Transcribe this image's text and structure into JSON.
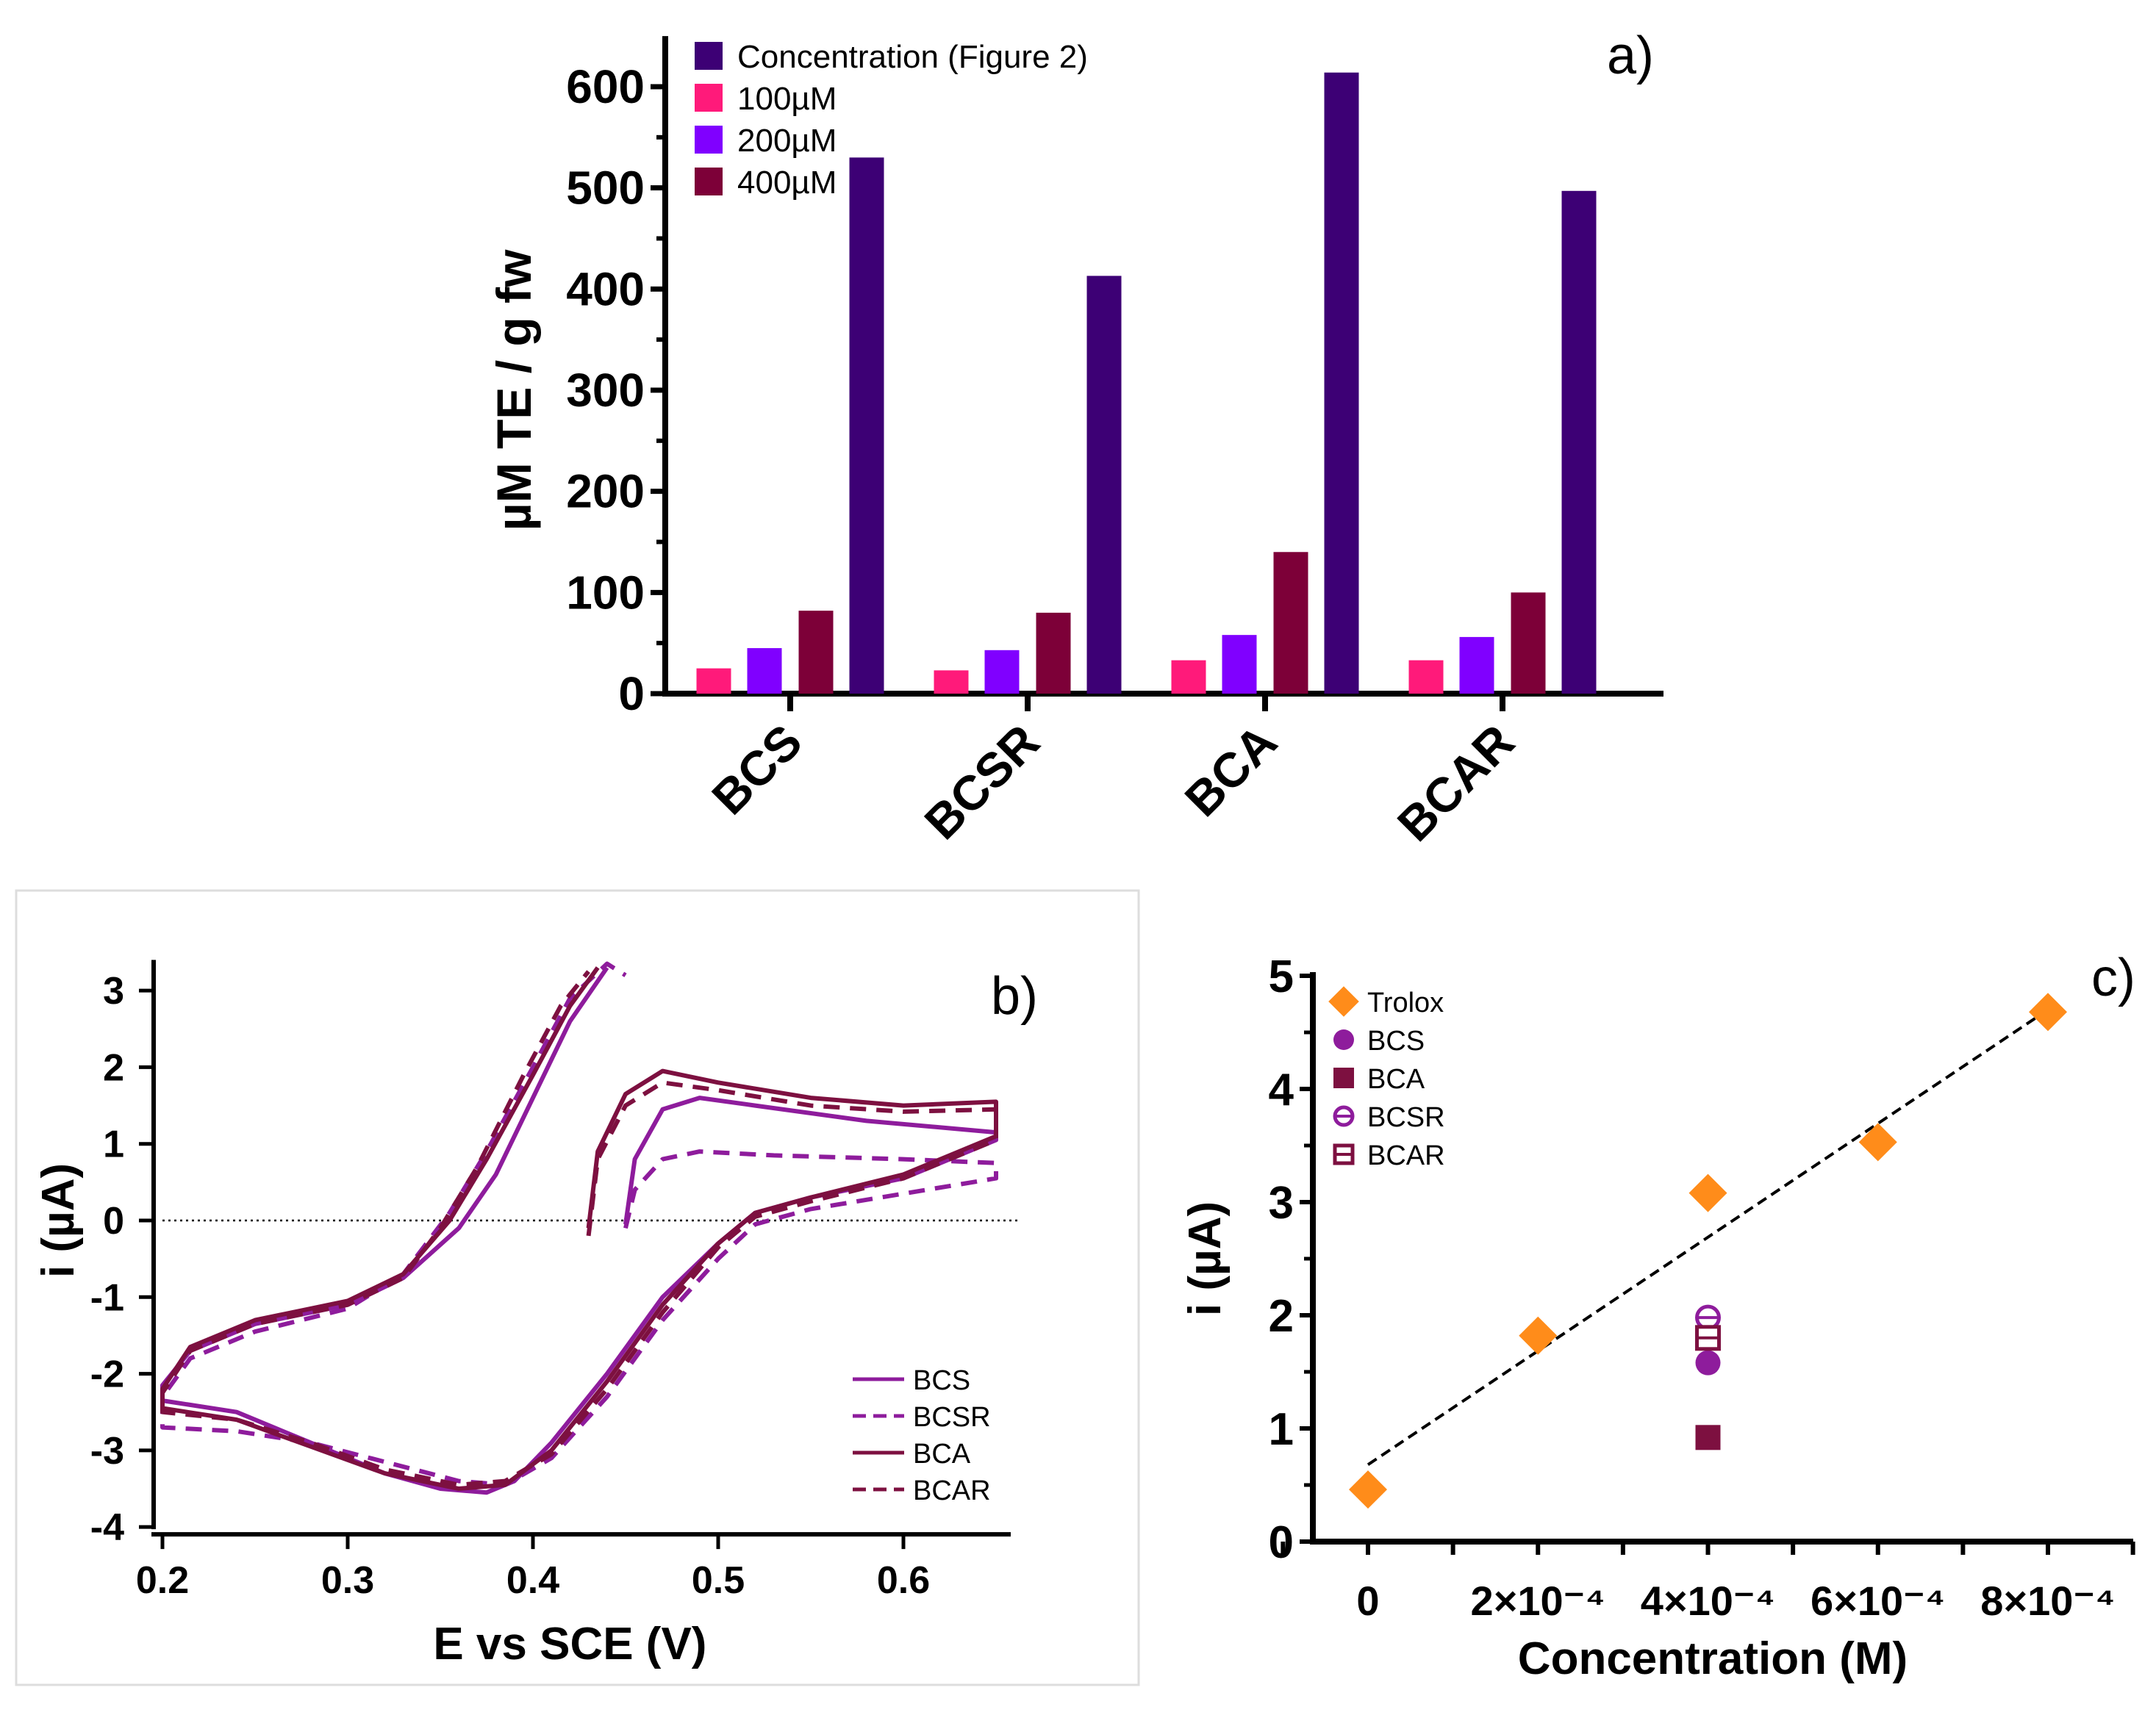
{
  "chart_data": [
    {
      "panel": "a)",
      "type": "bar",
      "ylabel": "µM TE / g fw",
      "xlabel": "",
      "ylim": [
        0,
        650
      ],
      "yticks": [
        0,
        100,
        200,
        300,
        400,
        500,
        600
      ],
      "categories": [
        "BCS",
        "BCSR",
        "BCA",
        "BCAR"
      ],
      "legend_position": "top-left",
      "series": [
        {
          "name": "100µM",
          "color": "#FF1A7A",
          "values": [
            25,
            23,
            33,
            33
          ]
        },
        {
          "name": "200µM",
          "color": "#8000FF",
          "values": [
            45,
            43,
            58,
            56
          ]
        },
        {
          "name": "400µM",
          "color": "#7D0038",
          "values": [
            82,
            80,
            140,
            100
          ]
        },
        {
          "name": "Concentration (Figure 2)",
          "color": "#3D0075",
          "values": [
            530,
            413,
            614,
            497
          ]
        }
      ],
      "legend_order": [
        "Concentration (Figure 2)",
        "100µM",
        "200µM",
        "400µM"
      ]
    },
    {
      "panel": "b)",
      "type": "line",
      "xlabel": "E vs SCE (V)",
      "ylabel": "i (µA)",
      "xlim": [
        0.2,
        0.65
      ],
      "ylim": [
        -4,
        3.4
      ],
      "xticks": [
        "0.2",
        "0.3",
        "0.4",
        "0.5",
        "0.6"
      ],
      "yticks": [
        "-4",
        "-3",
        "-2",
        "-1",
        "0",
        "1",
        "2",
        "3"
      ],
      "legend_position": "bottom-right",
      "series": [
        {
          "name": "BCS",
          "color": "#8E1C9C",
          "dash": false,
          "points": [
            [
              0.45,
              -0.05
            ],
            [
              0.455,
              0.8
            ],
            [
              0.47,
              1.45
            ],
            [
              0.49,
              1.6
            ],
            [
              0.52,
              1.5
            ],
            [
              0.58,
              1.3
            ],
            [
              0.65,
              1.15
            ],
            [
              0.65,
              1.05
            ],
            [
              0.6,
              0.55
            ],
            [
              0.55,
              0.3
            ],
            [
              0.52,
              0.1
            ],
            [
              0.5,
              -0.3
            ],
            [
              0.47,
              -1.0
            ],
            [
              0.44,
              -2.0
            ],
            [
              0.41,
              -2.9
            ],
            [
              0.39,
              -3.4
            ],
            [
              0.375,
              -3.55
            ],
            [
              0.35,
              -3.5
            ],
            [
              0.32,
              -3.3
            ],
            [
              0.28,
              -2.9
            ],
            [
              0.24,
              -2.5
            ],
            [
              0.2,
              -2.35
            ],
            [
              0.2,
              -2.15
            ],
            [
              0.215,
              -1.7
            ],
            [
              0.25,
              -1.35
            ],
            [
              0.3,
              -1.1
            ],
            [
              0.33,
              -0.75
            ],
            [
              0.36,
              -0.1
            ],
            [
              0.38,
              0.6
            ],
            [
              0.4,
              1.6
            ],
            [
              0.42,
              2.6
            ],
            [
              0.44,
              3.3
            ]
          ]
        },
        {
          "name": "BCSR",
          "color": "#8E1C9C",
          "dash": true,
          "points": [
            [
              0.45,
              -0.1
            ],
            [
              0.455,
              0.4
            ],
            [
              0.47,
              0.8
            ],
            [
              0.49,
              0.9
            ],
            [
              0.53,
              0.85
            ],
            [
              0.6,
              0.8
            ],
            [
              0.65,
              0.75
            ],
            [
              0.65,
              0.55
            ],
            [
              0.6,
              0.35
            ],
            [
              0.55,
              0.15
            ],
            [
              0.52,
              -0.05
            ],
            [
              0.5,
              -0.5
            ],
            [
              0.47,
              -1.3
            ],
            [
              0.44,
              -2.3
            ],
            [
              0.41,
              -3.1
            ],
            [
              0.385,
              -3.45
            ],
            [
              0.36,
              -3.4
            ],
            [
              0.32,
              -3.15
            ],
            [
              0.28,
              -2.9
            ],
            [
              0.24,
              -2.75
            ],
            [
              0.2,
              -2.7
            ],
            [
              0.2,
              -2.3
            ],
            [
              0.215,
              -1.8
            ],
            [
              0.25,
              -1.45
            ],
            [
              0.3,
              -1.15
            ],
            [
              0.33,
              -0.7
            ],
            [
              0.355,
              0.1
            ],
            [
              0.375,
              0.9
            ],
            [
              0.4,
              2.0
            ],
            [
              0.42,
              2.9
            ],
            [
              0.44,
              3.35
            ],
            [
              0.45,
              3.2
            ]
          ]
        },
        {
          "name": "BCA",
          "color": "#7D1040",
          "dash": false,
          "points": [
            [
              0.43,
              -0.1
            ],
            [
              0.435,
              0.9
            ],
            [
              0.45,
              1.65
            ],
            [
              0.47,
              1.95
            ],
            [
              0.5,
              1.8
            ],
            [
              0.55,
              1.6
            ],
            [
              0.6,
              1.5
            ],
            [
              0.65,
              1.55
            ],
            [
              0.65,
              1.1
            ],
            [
              0.6,
              0.6
            ],
            [
              0.55,
              0.3
            ],
            [
              0.52,
              0.1
            ],
            [
              0.5,
              -0.3
            ],
            [
              0.47,
              -1.1
            ],
            [
              0.44,
              -2.1
            ],
            [
              0.41,
              -3.0
            ],
            [
              0.385,
              -3.45
            ],
            [
              0.36,
              -3.5
            ],
            [
              0.32,
              -3.3
            ],
            [
              0.28,
              -2.95
            ],
            [
              0.24,
              -2.6
            ],
            [
              0.2,
              -2.45
            ],
            [
              0.2,
              -2.2
            ],
            [
              0.215,
              -1.65
            ],
            [
              0.25,
              -1.3
            ],
            [
              0.3,
              -1.05
            ],
            [
              0.33,
              -0.7
            ],
            [
              0.355,
              0.0
            ],
            [
              0.375,
              0.8
            ],
            [
              0.4,
              1.9
            ],
            [
              0.42,
              2.8
            ],
            [
              0.435,
              3.3
            ]
          ]
        },
        {
          "name": "BCAR",
          "color": "#7D1040",
          "dash": true,
          "points": [
            [
              0.43,
              -0.2
            ],
            [
              0.435,
              0.8
            ],
            [
              0.45,
              1.5
            ],
            [
              0.47,
              1.8
            ],
            [
              0.5,
              1.7
            ],
            [
              0.55,
              1.5
            ],
            [
              0.6,
              1.42
            ],
            [
              0.65,
              1.45
            ],
            [
              0.65,
              1.05
            ],
            [
              0.6,
              0.55
            ],
            [
              0.55,
              0.25
            ],
            [
              0.52,
              0.05
            ],
            [
              0.5,
              -0.35
            ],
            [
              0.47,
              -1.2
            ],
            [
              0.44,
              -2.2
            ],
            [
              0.41,
              -3.05
            ],
            [
              0.385,
              -3.4
            ],
            [
              0.36,
              -3.45
            ],
            [
              0.32,
              -3.25
            ],
            [
              0.28,
              -2.9
            ],
            [
              0.24,
              -2.6
            ],
            [
              0.2,
              -2.5
            ],
            [
              0.2,
              -2.25
            ],
            [
              0.215,
              -1.7
            ],
            [
              0.25,
              -1.35
            ],
            [
              0.3,
              -1.1
            ],
            [
              0.33,
              -0.75
            ],
            [
              0.35,
              -0.1
            ],
            [
              0.37,
              0.7
            ],
            [
              0.395,
              1.9
            ],
            [
              0.415,
              2.8
            ],
            [
              0.43,
              3.25
            ]
          ]
        }
      ]
    },
    {
      "panel": "c)",
      "type": "scatter",
      "xlabel": "Concentration (M)",
      "ylabel": "i (µA)",
      "xlim": [
        -0.0001,
        0.00093
      ],
      "ylim": [
        0,
        5
      ],
      "xticks": [
        {
          "v": 0,
          "label": "0"
        },
        {
          "v": 0.0002,
          "label": "2×10⁻⁴"
        },
        {
          "v": 0.0004,
          "label": "4×10⁻⁴"
        },
        {
          "v": 0.0006,
          "label": "6×10⁻⁴"
        },
        {
          "v": 0.0008,
          "label": "8×10⁻⁴"
        }
      ],
      "yticks": [
        "0",
        "1",
        "2",
        "3",
        "4",
        "5"
      ],
      "legend_position": "top-left",
      "fit_line": [
        [
          0,
          0.68
        ],
        [
          0.0008,
          4.7
        ]
      ],
      "series": [
        {
          "name": "Trolox",
          "marker": "diamond",
          "color": "#FF8C1A",
          "points": [
            [
              0,
              0.46
            ],
            [
              0.0002,
              1.82
            ],
            [
              0.0004,
              3.08
            ],
            [
              0.0006,
              3.53
            ],
            [
              0.0008,
              4.68
            ]
          ]
        },
        {
          "name": "BCS",
          "marker": "circle",
          "color": "#8E1C9C",
          "points": [
            [
              0.0004,
              1.58
            ]
          ]
        },
        {
          "name": "BCA",
          "marker": "square",
          "color": "#7D1040",
          "points": [
            [
              0.0004,
              0.92
            ]
          ]
        },
        {
          "name": "BCSR",
          "marker": "circle-open",
          "color": "#8E1C9C",
          "points": [
            [
              0.0004,
              1.98
            ]
          ]
        },
        {
          "name": "BCAR",
          "marker": "square-open",
          "color": "#7D1040",
          "points": [
            [
              0.0004,
              1.8
            ]
          ]
        }
      ]
    }
  ]
}
